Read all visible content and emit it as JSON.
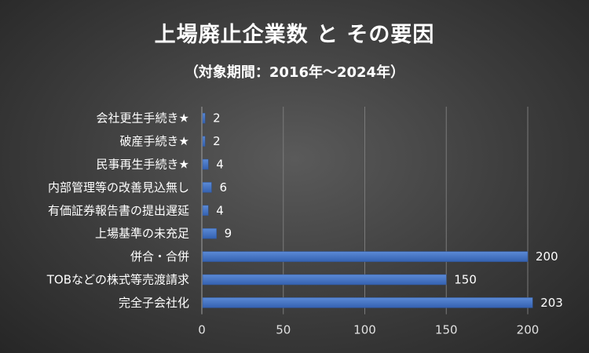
{
  "title": "上場廃止企業数 と その要因",
  "subtitle": "（対象期間：2016年～2024年）",
  "colors": {
    "bar": "#4472c4",
    "bar_dark": "#2f5597",
    "grid": "#7a7a7a",
    "axis": "#a0a0a0"
  },
  "chart_data": {
    "type": "bar",
    "orientation": "horizontal",
    "categories": [
      "会社更生手続き★",
      "破産手続き★",
      "民事再生手続き★",
      "内部管理等の改善見込無し",
      "有価証券報告書の提出遅延",
      "上場基準の未充足",
      "併合・合併",
      "TOBなどの株式等売渡請求",
      "完全子会社化"
    ],
    "values": [
      2,
      2,
      4,
      6,
      4,
      9,
      200,
      150,
      203
    ],
    "xlim": [
      0,
      200
    ],
    "xticks": [
      "0",
      "50",
      "100",
      "150",
      "200"
    ],
    "xtick_values": [
      0,
      50,
      100,
      150,
      200
    ],
    "grid": true,
    "data_labels": true
  }
}
